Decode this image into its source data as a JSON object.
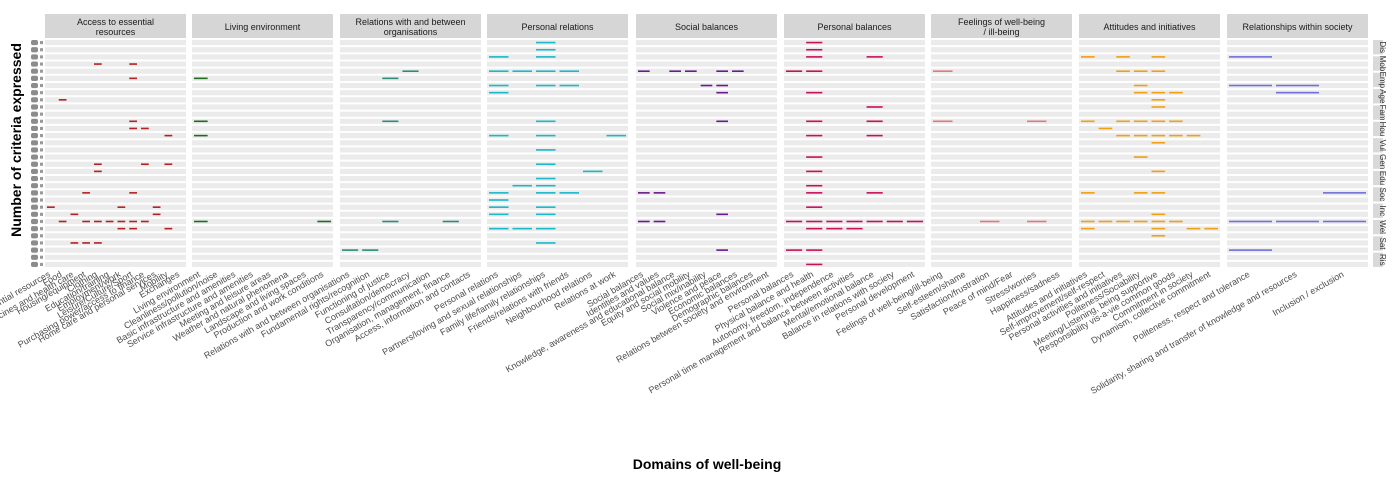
{
  "chart_data": {
    "type": "heatmap",
    "xlabel": "Domains of well-being",
    "ylabel": "Number of criteria expressed",
    "right_strip_labels": [
      "Dis",
      "Mob",
      "Emp",
      "Age",
      "Fam",
      "Hou",
      "Vul",
      "Gen",
      "Edu",
      "Soc",
      "Inc",
      "Wel",
      "Sat",
      "Ris"
    ],
    "facets": [
      {
        "title": [
          "Access to essential",
          "resources"
        ],
        "color": "#b22222",
        "criteria": [
          "Essential resources",
          "Food",
          "Medicines and health care",
          "Housing/equipment",
          "Clothing",
          "Education/training",
          "Employment/work",
          "Leisure/Culture/Sport",
          "Purchasing power/access to finance",
          "Home care and personal services",
          "Mobility",
          "Exchanges"
        ],
        "marks": [
          [
            0,
            23
          ],
          [
            1,
            8
          ],
          [
            1,
            25
          ],
          [
            2,
            24
          ],
          [
            2,
            28
          ],
          [
            3,
            21
          ],
          [
            3,
            25
          ],
          [
            3,
            28
          ],
          [
            4,
            3
          ],
          [
            4,
            17
          ],
          [
            4,
            18
          ],
          [
            4,
            25
          ],
          [
            4,
            28
          ],
          [
            5,
            25
          ],
          [
            6,
            23
          ],
          [
            6,
            25
          ],
          [
            6,
            26
          ],
          [
            7,
            3
          ],
          [
            7,
            5
          ],
          [
            7,
            11
          ],
          [
            7,
            12
          ],
          [
            7,
            21
          ],
          [
            7,
            25
          ],
          [
            7,
            26
          ],
          [
            8,
            12
          ],
          [
            8,
            17
          ],
          [
            8,
            25
          ],
          [
            9,
            23
          ],
          [
            9,
            24
          ],
          [
            10,
            13
          ],
          [
            10,
            17
          ],
          [
            10,
            26
          ]
        ]
      },
      {
        "title": [
          "Living environment"
        ],
        "color": "#1e6b1e",
        "criteria": [
          "Living environment",
          "Cleanliness/pollution/noise",
          "Basic infrastructure and amenities",
          "Service infrastructure and amenities",
          "Meeting and leisure areas",
          "Weather and natural phenomena",
          "Landscape and living spaces",
          "Production and work conditions"
        ],
        "marks": [
          [
            0,
            5
          ],
          [
            0,
            11
          ],
          [
            0,
            13
          ],
          [
            0,
            25
          ],
          [
            7,
            25
          ]
        ]
      },
      {
        "title": [
          "Relations with and between",
          "organisations"
        ],
        "color": "#2e8b7a",
        "criteria": [
          "Relations with and between organisations",
          "Fundamental rights/recognition",
          "Functioning of justice",
          "Consultation/democracy",
          "Transparency/communication",
          "Organisation, management, finance",
          "Access, information and contacts"
        ],
        "marks": [
          [
            0,
            29
          ],
          [
            1,
            29
          ],
          [
            2,
            5
          ],
          [
            2,
            11
          ],
          [
            2,
            25
          ],
          [
            3,
            4
          ],
          [
            5,
            25
          ]
        ]
      },
      {
        "title": [
          "Personal relations"
        ],
        "color": "#1ab8c8",
        "criteria": [
          "Personal relations",
          "Partners/loving and sexual relationships",
          "Family life/family relationships",
          "Friends/relations with friends",
          "Neighbourhood relations",
          "Relations at work"
        ],
        "marks": [
          [
            0,
            2
          ],
          [
            0,
            4
          ],
          [
            0,
            6
          ],
          [
            0,
            7
          ],
          [
            0,
            13
          ],
          [
            0,
            21
          ],
          [
            0,
            22
          ],
          [
            0,
            23
          ],
          [
            0,
            24
          ],
          [
            0,
            26
          ],
          [
            1,
            4
          ],
          [
            1,
            20
          ],
          [
            1,
            26
          ],
          [
            2,
            0
          ],
          [
            2,
            1
          ],
          [
            2,
            2
          ],
          [
            2,
            4
          ],
          [
            2,
            6
          ],
          [
            2,
            11
          ],
          [
            2,
            13
          ],
          [
            2,
            15
          ],
          [
            2,
            17
          ],
          [
            2,
            19
          ],
          [
            2,
            20
          ],
          [
            2,
            21
          ],
          [
            2,
            23
          ],
          [
            2,
            24
          ],
          [
            2,
            26
          ],
          [
            2,
            28
          ],
          [
            3,
            4
          ],
          [
            3,
            6
          ],
          [
            3,
            21
          ],
          [
            4,
            18
          ],
          [
            5,
            13
          ]
        ]
      },
      {
        "title": [
          "Social balances"
        ],
        "color": "#6a1a8a",
        "criteria": [
          "Social balances",
          "Identities and values",
          "Knowledge, awareness and educational balance",
          "Equity and social mobility",
          "Social mix/inability",
          "Violence and peace",
          "Economic balances",
          "Demographic balances",
          "Relations between society and environment"
        ],
        "marks": [
          [
            0,
            4
          ],
          [
            0,
            21
          ],
          [
            0,
            25
          ],
          [
            1,
            21
          ],
          [
            1,
            25
          ],
          [
            2,
            4
          ],
          [
            3,
            4
          ],
          [
            4,
            6
          ],
          [
            5,
            4
          ],
          [
            5,
            6
          ],
          [
            5,
            7
          ],
          [
            5,
            11
          ],
          [
            5,
            24
          ],
          [
            5,
            29
          ],
          [
            6,
            4
          ]
        ]
      },
      {
        "title": [
          "Personal balances"
        ],
        "color": "#c8105a",
        "criteria": [
          "Personal balances",
          "Physical balance and health",
          "Autonomy, freedom, independence",
          "Personal time management and balance between activities",
          "Mental/emotional balance",
          "Balance in relations with society",
          "Personal development"
        ],
        "marks": [
          [
            0,
            4
          ],
          [
            0,
            25
          ],
          [
            0,
            29
          ],
          [
            1,
            0
          ],
          [
            1,
            1
          ],
          [
            1,
            2
          ],
          [
            1,
            4
          ],
          [
            1,
            7
          ],
          [
            1,
            11
          ],
          [
            1,
            13
          ],
          [
            1,
            16
          ],
          [
            1,
            18
          ],
          [
            1,
            20
          ],
          [
            1,
            21
          ],
          [
            1,
            23
          ],
          [
            1,
            25
          ],
          [
            1,
            26
          ],
          [
            1,
            29
          ],
          [
            1,
            31
          ],
          [
            2,
            25
          ],
          [
            2,
            26
          ],
          [
            3,
            25
          ],
          [
            3,
            26
          ],
          [
            4,
            2
          ],
          [
            4,
            9
          ],
          [
            4,
            11
          ],
          [
            4,
            13
          ],
          [
            4,
            21
          ],
          [
            4,
            25
          ],
          [
            5,
            25
          ],
          [
            6,
            25
          ]
        ]
      },
      {
        "title": [
          "Feelings of well-being",
          "/ ill-being"
        ],
        "color": "#e07880",
        "criteria": [
          "Feelings of well-being/ill-being",
          "Self-esteem/shame",
          "Satisfaction/frustration",
          "Peace of mind/Fear",
          "Stress/worries",
          "Happiness/sadness"
        ],
        "marks": [
          [
            0,
            4
          ],
          [
            0,
            11
          ],
          [
            2,
            25
          ],
          [
            4,
            11
          ],
          [
            4,
            25
          ]
        ]
      },
      {
        "title": [
          "Attitudes and initiatives"
        ],
        "color": "#f0a010",
        "criteria": [
          "Attitudes and initiatives",
          "Self-improvement/self-respect",
          "Personal activities and initiatives",
          "Politeness/Sociability",
          "Meeting/Listening, being supportive",
          "Responsibility vis-a-vie common goods",
          "Commitment in society",
          "Dynamism, collective commitment"
        ],
        "marks": [
          [
            0,
            2
          ],
          [
            0,
            11
          ],
          [
            0,
            21
          ],
          [
            0,
            25
          ],
          [
            0,
            26
          ],
          [
            1,
            12
          ],
          [
            1,
            25
          ],
          [
            2,
            2
          ],
          [
            2,
            4
          ],
          [
            2,
            11
          ],
          [
            2,
            13
          ],
          [
            2,
            25
          ],
          [
            3,
            4
          ],
          [
            3,
            6
          ],
          [
            3,
            7
          ],
          [
            3,
            11
          ],
          [
            3,
            13
          ],
          [
            3,
            16
          ],
          [
            3,
            21
          ],
          [
            3,
            25
          ],
          [
            4,
            2
          ],
          [
            4,
            4
          ],
          [
            4,
            7
          ],
          [
            4,
            8
          ],
          [
            4,
            9
          ],
          [
            4,
            11
          ],
          [
            4,
            13
          ],
          [
            4,
            14
          ],
          [
            4,
            18
          ],
          [
            4,
            21
          ],
          [
            4,
            24
          ],
          [
            4,
            25
          ],
          [
            4,
            26
          ],
          [
            4,
            27
          ],
          [
            5,
            7
          ],
          [
            5,
            11
          ],
          [
            5,
            13
          ],
          [
            5,
            25
          ],
          [
            6,
            13
          ],
          [
            6,
            26
          ],
          [
            7,
            26
          ]
        ]
      },
      {
        "title": [
          "Relationships within society"
        ],
        "color": "#7070d8",
        "criteria": [
          "Politeness, respect and tolerance",
          "Solidarity, sharing and transfer of knowledge and resources",
          "Inclusion / exclusion"
        ],
        "marks": [
          [
            0,
            2
          ],
          [
            0,
            6
          ],
          [
            0,
            25
          ],
          [
            0,
            29
          ],
          [
            1,
            6
          ],
          [
            1,
            7
          ],
          [
            1,
            25
          ],
          [
            2,
            21
          ],
          [
            2,
            25
          ]
        ]
      }
    ]
  }
}
